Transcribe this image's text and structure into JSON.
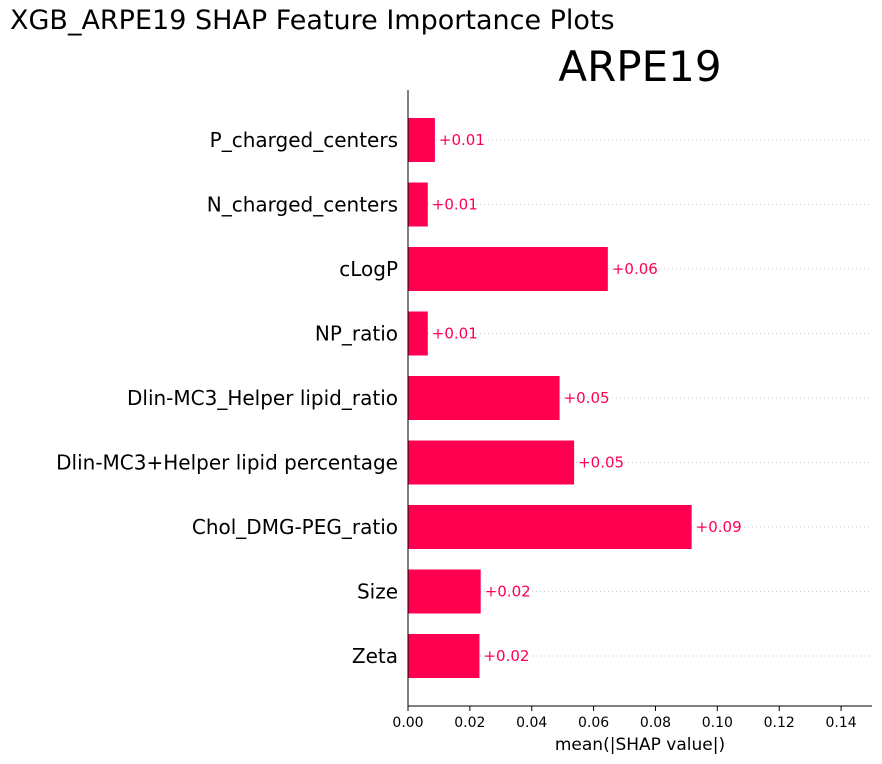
{
  "figure": {
    "suptitle": "XGB_ARPE19 SHAP Feature Importance Plots"
  },
  "chart_data": {
    "type": "bar",
    "orientation": "horizontal",
    "title": "ARPE19",
    "xlabel": "mean(|SHAP value|)",
    "ylabel": "",
    "xlim": [
      0,
      0.15
    ],
    "xticks": [
      "0.00",
      "0.02",
      "0.04",
      "0.06",
      "0.08",
      "0.10",
      "0.12",
      "0.14"
    ],
    "xtick_values": [
      0,
      0.02,
      0.04,
      0.06,
      0.08,
      0.1,
      0.12,
      0.14
    ],
    "categories": [
      "P_charged_centers",
      "N_charged_centers",
      "cLogP",
      "NP_ratio",
      "Dlin-MC3_Helper lipid_ratio",
      "Dlin-MC3+Helper lipid percentage",
      "Chol_DMG-PEG_ratio",
      "Size",
      "Zeta"
    ],
    "values": [
      0.0087,
      0.0064,
      0.0646,
      0.0064,
      0.049,
      0.0537,
      0.0917,
      0.0235,
      0.0231
    ],
    "data_labels": [
      "+0.01",
      "+0.01",
      "+0.06",
      "+0.01",
      "+0.05",
      "+0.05",
      "+0.09",
      "+0.02",
      "+0.02"
    ],
    "bar_color": "#ff0051",
    "grid": "dotted horizontal guide per row",
    "legend": "none"
  }
}
